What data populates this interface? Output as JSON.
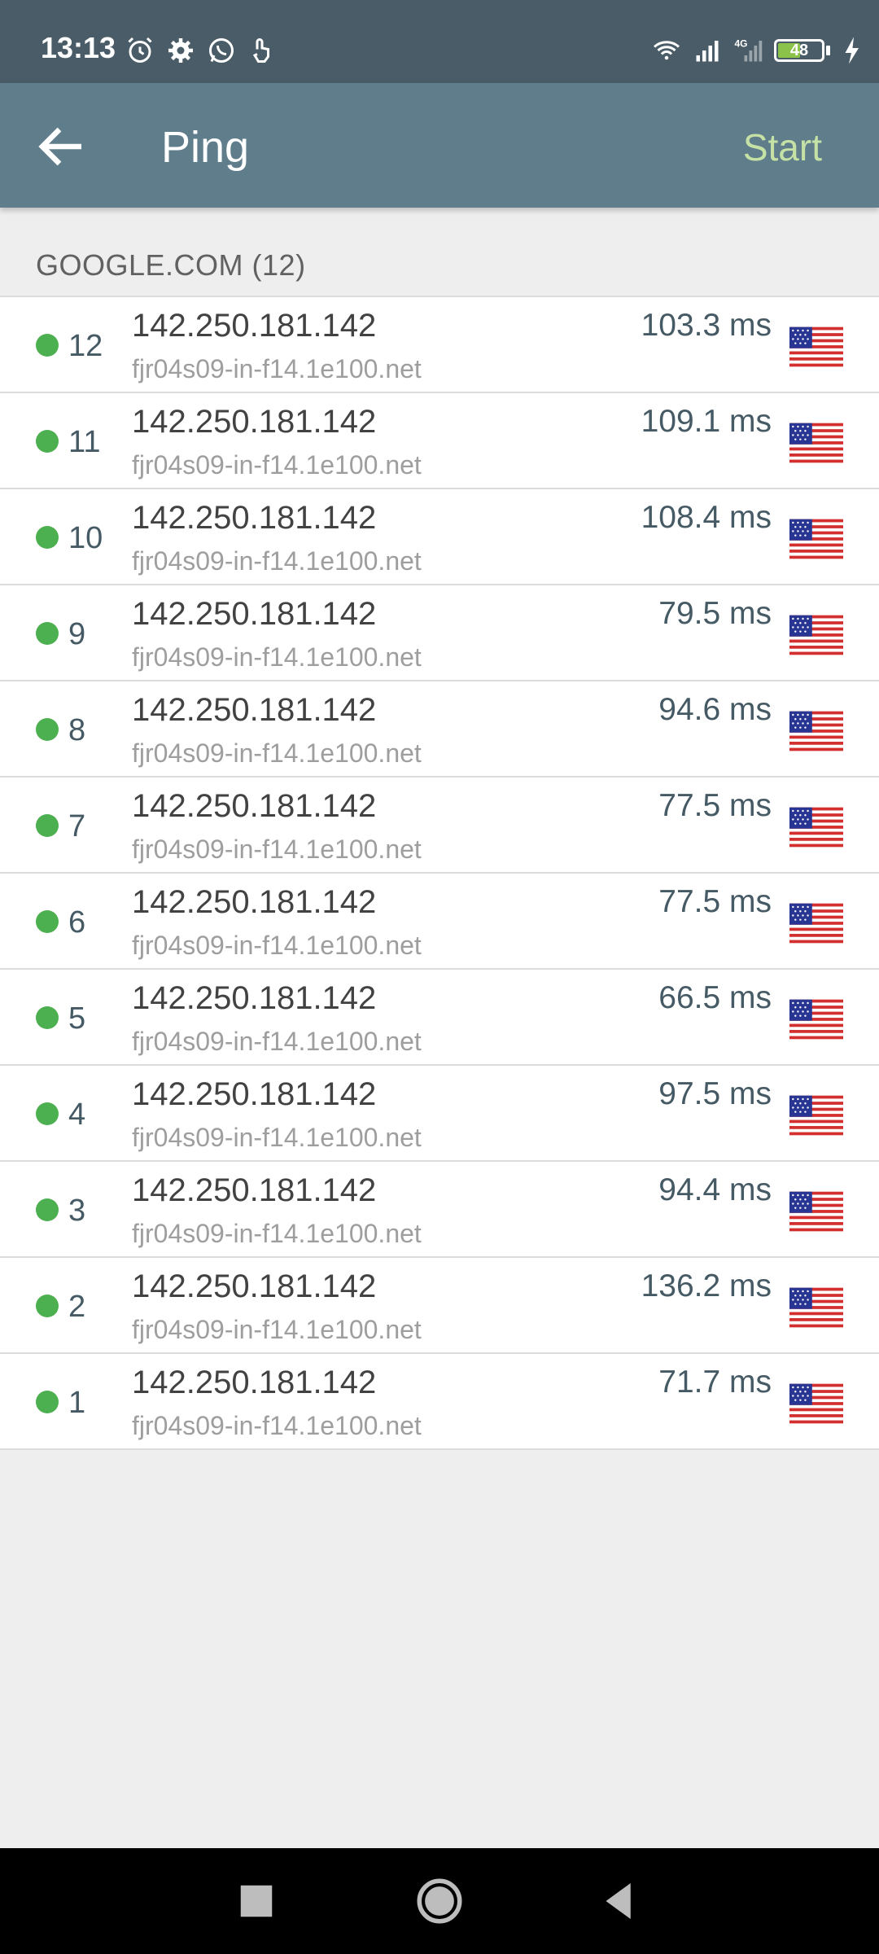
{
  "status_bar": {
    "time": "13:13",
    "battery": "48",
    "network": "4G"
  },
  "app_bar": {
    "title": "Ping",
    "start_label": "Start"
  },
  "section": {
    "header": "GOOGLE.COM (12)"
  },
  "rows": [
    {
      "seq": "12",
      "ip": "142.250.181.142",
      "host": "fjr04s09-in-f14.1e100.net",
      "time": "103.3 ms",
      "country": "us-flag"
    },
    {
      "seq": "11",
      "ip": "142.250.181.142",
      "host": "fjr04s09-in-f14.1e100.net",
      "time": "109.1 ms",
      "country": "us-flag"
    },
    {
      "seq": "10",
      "ip": "142.250.181.142",
      "host": "fjr04s09-in-f14.1e100.net",
      "time": "108.4 ms",
      "country": "us-flag"
    },
    {
      "seq": "9",
      "ip": "142.250.181.142",
      "host": "fjr04s09-in-f14.1e100.net",
      "time": "79.5 ms",
      "country": "us-flag"
    },
    {
      "seq": "8",
      "ip": "142.250.181.142",
      "host": "fjr04s09-in-f14.1e100.net",
      "time": "94.6 ms",
      "country": "us-flag"
    },
    {
      "seq": "7",
      "ip": "142.250.181.142",
      "host": "fjr04s09-in-f14.1e100.net",
      "time": "77.5 ms",
      "country": "us-flag"
    },
    {
      "seq": "6",
      "ip": "142.250.181.142",
      "host": "fjr04s09-in-f14.1e100.net",
      "time": "77.5 ms",
      "country": "us-flag"
    },
    {
      "seq": "5",
      "ip": "142.250.181.142",
      "host": "fjr04s09-in-f14.1e100.net",
      "time": "66.5 ms",
      "country": "us-flag"
    },
    {
      "seq": "4",
      "ip": "142.250.181.142",
      "host": "fjr04s09-in-f14.1e100.net",
      "time": "97.5 ms",
      "country": "us-flag"
    },
    {
      "seq": "3",
      "ip": "142.250.181.142",
      "host": "fjr04s09-in-f14.1e100.net",
      "time": "94.4 ms",
      "country": "us-flag"
    },
    {
      "seq": "2",
      "ip": "142.250.181.142",
      "host": "fjr04s09-in-f14.1e100.net",
      "time": "136.2 ms",
      "country": "us-flag"
    },
    {
      "seq": "1",
      "ip": "142.250.181.142",
      "host": "fjr04s09-in-f14.1e100.net",
      "time": "71.7 ms",
      "country": "us-flag"
    }
  ],
  "colors": {
    "app_bar": "#607d8b",
    "status_bar": "#4a5c67",
    "accent": "#c5e1a5",
    "status_ok": "#4caf50"
  },
  "icons": {
    "back": "arrow-left-icon",
    "nav_recents": "square-icon",
    "nav_home": "circle-icon",
    "nav_back": "triangle-back-icon"
  }
}
